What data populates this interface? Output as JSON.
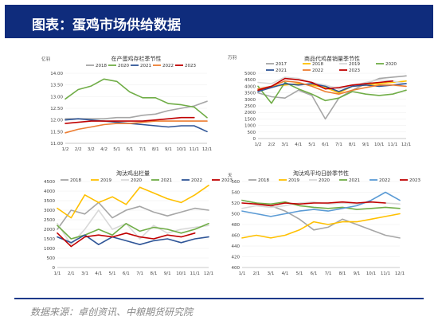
{
  "header": {
    "title": "图表：蛋鸡市场供给数据"
  },
  "footer": {
    "source": "数据来源：卓创资讯、中粮期货研究院"
  },
  "colors": {
    "header_bg": "#0f2c7c",
    "s2018": "#a6a6a6",
    "s2019": "#ffc000",
    "s2020": "#70ad47",
    "s2021": "#2f5597",
    "s2022": "#ed7d31",
    "s2023": "#c00000"
  },
  "chart_data": [
    {
      "type": "line",
      "title": "在产蛋鸡存栏季节性",
      "ylabel": "亿羽",
      "categories": [
        "1/2",
        "2/2",
        "3/2",
        "4/2",
        "5/1",
        "6/1",
        "7/1",
        "8/1",
        "9/1",
        "10/1",
        "11/1",
        "12/1"
      ],
      "yticks": [
        "11.00",
        "11.50",
        "12.00",
        "12.50",
        "13.00",
        "13.50",
        "14.00"
      ],
      "ylim": [
        11.0,
        14.0
      ],
      "series": [
        {
          "name": "2018",
          "color": "#a6a6a6",
          "values": [
            12.05,
            12.05,
            12.05,
            12.05,
            12.1,
            12.1,
            12.2,
            12.25,
            12.4,
            12.5,
            12.6,
            12.8
          ]
        },
        {
          "name": "2020",
          "color": "#70ad47",
          "values": [
            12.9,
            13.3,
            13.45,
            13.75,
            13.65,
            13.2,
            12.95,
            12.95,
            12.7,
            12.65,
            12.55,
            12.1
          ]
        },
        {
          "name": "2021",
          "color": "#2f5597",
          "values": [
            12.0,
            12.05,
            12.0,
            11.95,
            11.9,
            11.85,
            11.8,
            11.75,
            11.7,
            11.75,
            11.75,
            11.5
          ]
        },
        {
          "name": "2022",
          "color": "#ed7d31",
          "values": [
            11.45,
            11.6,
            11.7,
            11.8,
            11.85,
            11.85,
            11.9,
            11.95,
            11.95,
            11.95,
            11.95,
            11.95
          ]
        },
        {
          "name": "2023",
          "color": "#c00000",
          "values": [
            11.85,
            11.9,
            11.95,
            11.95,
            11.95,
            11.95,
            11.95,
            12.0,
            12.05,
            12.1,
            12.1,
            null
          ]
        }
      ]
    },
    {
      "type": "line",
      "title": "商品代鸡苗销量季节性",
      "ylabel": "万羽",
      "categories": [
        "1/2",
        "2/2",
        "3/1",
        "4/1",
        "5/1",
        "6/1",
        "7/1",
        "8/1",
        "9/1",
        "10/1",
        "11/1",
        "12/1"
      ],
      "yticks": [
        "0",
        "500",
        "1000",
        "1500",
        "2000",
        "2500",
        "3000",
        "3500",
        "4000",
        "4500",
        "5000"
      ],
      "ylim": [
        0,
        5000
      ],
      "series": [
        {
          "name": "2017",
          "color": "#a6a6a6",
          "values": [
            3500,
            3200,
            3100,
            3700,
            3300,
            1500,
            3100,
            3700,
            4200,
            4600,
            4700,
            4800
          ]
        },
        {
          "name": "2018",
          "color": "#ffc000",
          "values": [
            3700,
            4000,
            4100,
            4200,
            4100,
            3900,
            3500,
            4000,
            4100,
            4200,
            4300,
            4400
          ]
        },
        {
          "name": "2019",
          "color": "#d9d9d9",
          "values": [
            4300,
            4200,
            4700,
            4600,
            4300,
            4100,
            3800,
            4000,
            4300,
            4500,
            4400,
            4200
          ]
        },
        {
          "name": "2020",
          "color": "#70ad47",
          "values": [
            4000,
            2700,
            4300,
            3800,
            3400,
            2900,
            3100,
            3600,
            3400,
            3300,
            3400,
            3700
          ]
        },
        {
          "name": "2021",
          "color": "#2f5597",
          "values": [
            3600,
            3900,
            4200,
            4100,
            4200,
            4000,
            3600,
            4000,
            4100,
            4000,
            4100,
            4200
          ]
        },
        {
          "name": "2022",
          "color": "#ed7d31",
          "values": [
            3800,
            4000,
            4400,
            4300,
            4000,
            3600,
            3400,
            3700,
            3900,
            4100,
            4100,
            4000
          ]
        },
        {
          "name": "2023",
          "color": "#c00000",
          "values": [
            3700,
            4000,
            4600,
            4500,
            4300,
            3800,
            3900,
            4100,
            4200,
            4300,
            4400,
            null
          ]
        }
      ]
    },
    {
      "type": "line",
      "title": "淘汰鸡出栏量",
      "ylabel": "",
      "categories": [
        "1/1",
        "2/1",
        "3/1",
        "4/1",
        "5/1",
        "6/1",
        "7/1",
        "8/1",
        "9/1",
        "10/1",
        "11/1",
        "12/1"
      ],
      "yticks": [
        "0",
        "500",
        "1000",
        "1500",
        "2000",
        "2500",
        "3000",
        "3500",
        "4000",
        "4500"
      ],
      "ylim": [
        0,
        4500
      ],
      "series": [
        {
          "name": "2018",
          "color": "#a6a6a6",
          "values": [
            2000,
            3000,
            2800,
            3400,
            2600,
            3000,
            3200,
            2900,
            2700,
            2900,
            3100,
            3000
          ]
        },
        {
          "name": "2019",
          "color": "#ffc000",
          "values": [
            3100,
            2600,
            3800,
            3400,
            3700,
            3300,
            4200,
            3900,
            3600,
            3400,
            3800,
            4300
          ]
        },
        {
          "name": "2020",
          "color": "#d9d9d9",
          "values": [
            2300,
            1200,
            2000,
            3000,
            2000,
            2300,
            1500,
            2200,
            1800,
            2000,
            2100,
            2200
          ]
        },
        {
          "name": "2021",
          "color": "#70ad47",
          "values": [
            2200,
            1500,
            1700,
            2000,
            1700,
            2300,
            1900,
            2100,
            2000,
            1800,
            2000,
            2300
          ]
        },
        {
          "name": "2022",
          "color": "#2f5597",
          "values": [
            1600,
            1300,
            1700,
            1200,
            1600,
            1400,
            1200,
            1400,
            1500,
            1300,
            1500,
            1600
          ]
        },
        {
          "name": "2023",
          "color": "#c00000",
          "values": [
            1800,
            1100,
            1600,
            1700,
            1600,
            1800,
            1600,
            1500,
            1700,
            1600,
            1800,
            null
          ]
        }
      ]
    },
    {
      "type": "line",
      "title": "淘汰鸡平均日龄季节性",
      "ylabel": "天",
      "categories": [
        "1/1",
        "2/1",
        "3/1",
        "4/1",
        "5/1",
        "6/1",
        "7/1",
        "8/1",
        "9/1",
        "10/1",
        "11/1",
        "12/1"
      ],
      "yticks": [
        "400",
        "420",
        "440",
        "460",
        "480",
        "500",
        "520",
        "540",
        "560"
      ],
      "ylim": [
        400,
        560
      ],
      "series": [
        {
          "name": "2018",
          "color": "#a6a6a6",
          "values": [
            525,
            520,
            515,
            505,
            490,
            470,
            475,
            490,
            480,
            470,
            460,
            455
          ]
        },
        {
          "name": "2019",
          "color": "#ffc000",
          "values": [
            455,
            460,
            455,
            460,
            470,
            485,
            480,
            485,
            485,
            490,
            495,
            500
          ]
        },
        {
          "name": "2020",
          "color": "#d9d9d9",
          "values": [
            510,
            515,
            512,
            515,
            520,
            522,
            518,
            520,
            518,
            522,
            520,
            518
          ]
        },
        {
          "name": "2021",
          "color": "#70ad47",
          "values": [
            525,
            520,
            518,
            522,
            515,
            512,
            510,
            512,
            508,
            510,
            512,
            510
          ]
        },
        {
          "name": "2022",
          "color": "#5b9bd5",
          "values": [
            505,
            500,
            495,
            500,
            505,
            508,
            505,
            510,
            515,
            525,
            540,
            525
          ]
        },
        {
          "name": "2023",
          "color": "#c00000",
          "values": [
            520,
            518,
            515,
            520,
            518,
            520,
            520,
            522,
            520,
            522,
            520,
            null
          ]
        }
      ]
    }
  ]
}
